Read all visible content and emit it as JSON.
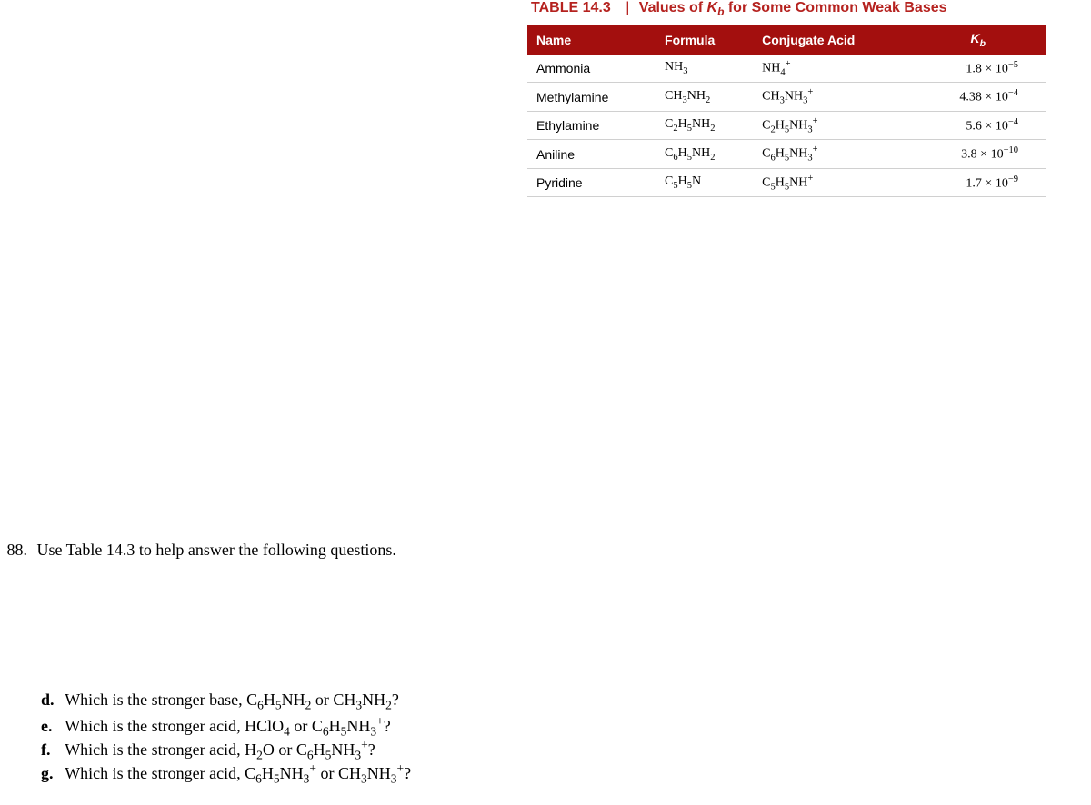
{
  "table": {
    "title_num": "TABLE 14.3",
    "title_text_html": "Values of <i>K</i><sub>b</sub> for Some Common Weak Bases",
    "header_bg": "#a30f0e",
    "header_fg": "#ffffff",
    "row_border": "#d0d0d0",
    "columns": {
      "c0": "Name",
      "c1": "Formula",
      "c2": "Conjugate Acid",
      "c3_html": "<i>K</i><sub>b</sub>"
    },
    "rows": [
      {
        "name": "Ammonia",
        "formula_html": "NH<sub>3</sub>",
        "conj_html": "NH<sub>4</sub><sup>+</sup>",
        "kb_html": "1.8 × 10<sup>−5</sup>"
      },
      {
        "name": "Methylamine",
        "formula_html": "CH<sub>3</sub>NH<sub>2</sub>",
        "conj_html": "CH<sub>3</sub>NH<sub>3</sub><sup>+</sup>",
        "kb_html": "4.38 × 10<sup>−4</sup>"
      },
      {
        "name": "Ethylamine",
        "formula_html": "C<sub>2</sub>H<sub>5</sub>NH<sub>2</sub>",
        "conj_html": "C<sub>2</sub>H<sub>5</sub>NH<sub>3</sub><sup>+</sup>",
        "kb_html": "5.6 × 10<sup>−4</sup>"
      },
      {
        "name": "Aniline",
        "formula_html": "C<sub>6</sub>H<sub>5</sub>NH<sub>2</sub>",
        "conj_html": "C<sub>6</sub>H<sub>5</sub>NH<sub>3</sub><sup>+</sup>",
        "kb_html": "3.8 × 10<sup>−10</sup>"
      },
      {
        "name": "Pyridine",
        "formula_html": "C<sub>5</sub>H<sub>5</sub>N",
        "conj_html": "C<sub>5</sub>H<sub>5</sub>NH<sup>+</sup>",
        "kb_html": "1.7 × 10<sup>−9</sup>"
      }
    ]
  },
  "question": {
    "number": "88.",
    "stem": "Use Table 14.3 to help answer the following questions.",
    "parts": {
      "d": {
        "letter": "d.",
        "text_html": "Which is the stronger base, C<sub>6</sub>H<sub>5</sub>NH<sub>2</sub> or CH<sub>3</sub>NH<sub>2</sub>?"
      },
      "e": {
        "letter": "e.",
        "text_html": "Which is the stronger acid, HClO<sub>4</sub> or C<sub>6</sub>H<sub>5</sub>NH<sub>3</sub><sup>+</sup>?"
      },
      "f": {
        "letter": "f.",
        "text_html": "Which is the stronger acid, H<sub>2</sub>O or C<sub>6</sub>H<sub>5</sub>NH<sub>3</sub><sup>+</sup>?"
      },
      "g": {
        "letter": "g.",
        "text_html": "Which is the stronger acid, C<sub>6</sub>H<sub>5</sub>NH<sub>3</sub><sup>+</sup> or CH<sub>3</sub>NH<sub>3</sub><sup>+</sup>?"
      }
    }
  },
  "layout": {
    "part_tops": {
      "d": 760,
      "e": 786,
      "f": 812,
      "g": 838
    }
  }
}
